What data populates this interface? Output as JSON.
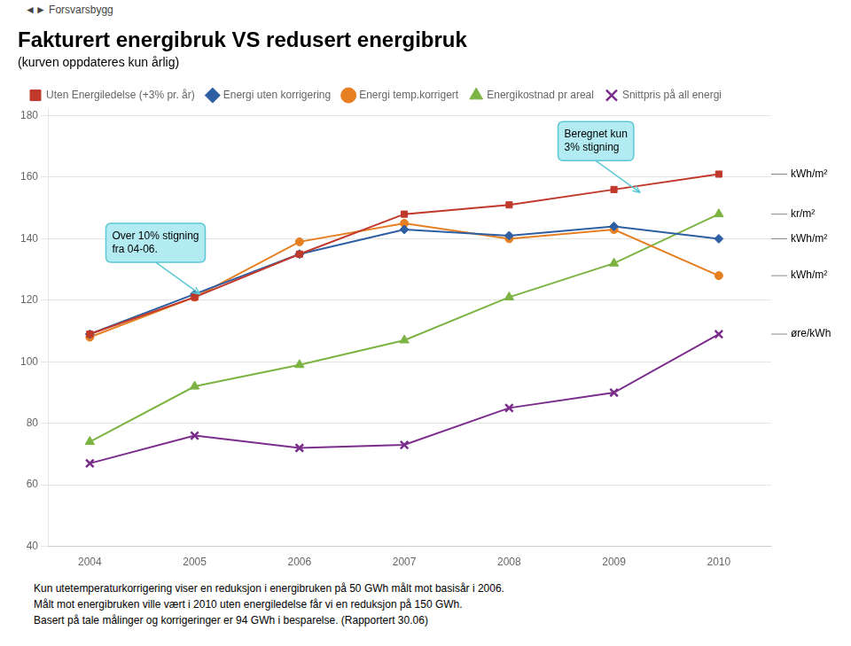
{
  "chart_data": {
    "type": "line",
    "title": "Fakturert energibruk VS redusert energibruk",
    "subtitle": "(kurven oppdateres kun årlig)",
    "logo_text": "◄► Forsvarsbygg",
    "footer": "Kun utetemperaturkorrigering viser en reduksjon i energibruken på 50 GWh målt mot basisår i 2006.\nMålt mot energibruken ville vært i 2010 uten energiledelse får vi en reduksjon på 150 GWh.\nBasert på tale målinger og korrigeringer er 94 GWh i besparelse. (Rapportert 30.06)",
    "x": [
      2004,
      2005,
      2006,
      2007,
      2008,
      2009,
      2010
    ],
    "xlim": [
      2003.6,
      2010.5
    ],
    "xticks": [
      2004,
      2005,
      2006,
      2007,
      2008,
      2009,
      2010
    ],
    "ylim": [
      40,
      182
    ],
    "yticks": [
      40,
      60,
      80,
      100,
      120,
      140,
      160,
      180
    ],
    "grid": "y",
    "legend": "upper left",
    "series": [
      {
        "name": "Uten Energiledelse (+3% pr. år)",
        "color": "#C0392B",
        "marker": "square",
        "unit": "kWh/m²",
        "values": [
          109,
          121,
          135,
          148,
          151,
          156,
          161
        ]
      },
      {
        "name": "Energi uten korrigering",
        "color": "#2E5FA3",
        "marker": "diamond",
        "unit": "kWh/m²",
        "values": [
          109,
          122,
          135,
          143,
          141,
          144,
          140
        ]
      },
      {
        "name": "Energi temp.korrigert",
        "color": "#E67E22",
        "marker": "circle",
        "unit": "kWh/m²",
        "values": [
          108,
          121,
          139,
          145,
          140,
          143,
          128
        ]
      },
      {
        "name": "Energikostnad pr areal",
        "color": "#7CB342",
        "marker": "triangle",
        "unit": "kr/m²",
        "values": [
          74,
          92,
          99,
          107,
          121,
          132,
          148
        ]
      },
      {
        "name": "Snittpris på all energi",
        "color": "#7B2D8B",
        "marker": "x",
        "unit": "øre/kWh",
        "values": [
          67,
          76,
          72,
          73,
          85,
          90,
          109
        ]
      }
    ],
    "annotations": [
      {
        "text": "Over 10% stigning\nfra 04-06.",
        "x": 2005.05,
        "y": 122
      },
      {
        "text": "Beregnet kun\n3% stigning",
        "x": 2009.25,
        "y": 155
      }
    ]
  }
}
